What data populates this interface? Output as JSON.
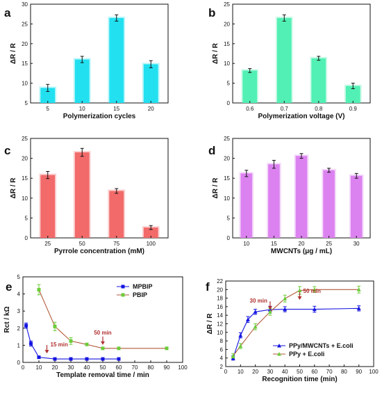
{
  "chart_data": [
    {
      "panel": "a",
      "type": "bar",
      "categories": [
        "5",
        "10",
        "15",
        "20"
      ],
      "values": [
        8.8,
        16.0,
        26.5,
        14.8
      ],
      "errors": [
        0.9,
        0.8,
        0.8,
        0.9
      ],
      "xlabel": "Polymerization cycles",
      "ylabel": "ΔR / R",
      "ylim": [
        5,
        30
      ],
      "yticks": [
        5,
        10,
        15,
        20,
        25,
        30
      ],
      "color": "#22e0f0"
    },
    {
      "panel": "b",
      "type": "bar",
      "categories": [
        "0.6",
        "0.7",
        "0.8",
        "0.9"
      ],
      "values": [
        8.2,
        21.5,
        11.3,
        4.3
      ],
      "errors": [
        0.5,
        0.8,
        0.5,
        0.7
      ],
      "xlabel": "Polymerization voltage (V)",
      "ylabel": "ΔR / R",
      "ylim": [
        0,
        25
      ],
      "yticks": [
        0,
        5,
        10,
        15,
        20,
        25
      ],
      "color": "#52f0b4"
    },
    {
      "panel": "c",
      "type": "bar",
      "categories": [
        "25",
        "50",
        "75",
        "100"
      ],
      "values": [
        15.8,
        21.5,
        11.8,
        2.6
      ],
      "errors": [
        0.9,
        1.0,
        0.6,
        0.5
      ],
      "xlabel": "Pyrrole concentration (mM)",
      "ylabel": "ΔR / R",
      "ylim": [
        0,
        25
      ],
      "yticks": [
        0,
        5,
        10,
        15,
        20,
        25
      ],
      "color": "#f26a6a"
    },
    {
      "panel": "d",
      "type": "bar",
      "categories": [
        "10",
        "15",
        "20",
        "25",
        "30"
      ],
      "values": [
        16.2,
        18.5,
        20.6,
        17.0,
        15.6
      ],
      "errors": [
        0.8,
        1.0,
        0.6,
        0.5,
        0.6
      ],
      "xlabel": "MWCNTs (μg / mL)",
      "ylabel": "ΔR / R",
      "ylim": [
        0,
        25
      ],
      "yticks": [
        0,
        5,
        10,
        15,
        20,
        25
      ],
      "color": "#dc82f0"
    },
    {
      "panel": "e",
      "type": "line",
      "xlabel": "Template removal time / min",
      "ylabel": "Rct / kΩ",
      "xlim": [
        0,
        100
      ],
      "xticks": [
        0,
        10,
        20,
        30,
        40,
        50,
        60,
        70,
        80,
        90,
        100
      ],
      "ylim": [
        0,
        5
      ],
      "yticks": [
        0,
        1,
        2,
        3,
        4,
        5
      ],
      "series": [
        {
          "name": "MPBIP",
          "color": "#1414e0",
          "marker": "square",
          "x": [
            2,
            5,
            10,
            20,
            30,
            40,
            50,
            60
          ],
          "y": [
            2.15,
            1.1,
            0.3,
            0.2,
            0.2,
            0.2,
            0.2,
            0.2
          ],
          "err": [
            0.15,
            0.15,
            0.05,
            0.03,
            0.03,
            0.03,
            0.03,
            0.03
          ]
        },
        {
          "name": "PBIP",
          "color": "#6ccc3a",
          "line_color": "#b05a3a",
          "marker": "square",
          "x": [
            10,
            20,
            30,
            40,
            50,
            60,
            90
          ],
          "y": [
            4.25,
            2.1,
            1.25,
            1.05,
            0.82,
            0.82,
            0.82
          ],
          "err": [
            0.3,
            0.25,
            0.2,
            0.05,
            0.04,
            0.04,
            0.04
          ]
        }
      ],
      "annotations": [
        {
          "text": "15 min",
          "x": 15,
          "y": 0.85,
          "color": "#b03030"
        },
        {
          "text": "50 min",
          "x": 50,
          "y": 1.35,
          "color": "#b03030"
        }
      ]
    },
    {
      "panel": "f",
      "type": "line",
      "xlabel": "Recognition time (min)",
      "ylabel": "ΔR / R",
      "xlim": [
        0,
        100
      ],
      "xticks": [
        0,
        10,
        20,
        30,
        40,
        50,
        60,
        70,
        80,
        90,
        100
      ],
      "ylim": [
        2,
        22
      ],
      "yticks": [
        2,
        4,
        6,
        8,
        10,
        12,
        14,
        16,
        18,
        20,
        22
      ],
      "series": [
        {
          "name": "PPy/MWCNTs + E.coli",
          "color": "#1414e0",
          "marker": "triangle",
          "x": [
            5,
            10,
            15,
            20,
            30,
            40,
            60,
            90
          ],
          "y": [
            4.0,
            9.3,
            13.0,
            14.8,
            15.3,
            15.4,
            15.4,
            15.6
          ],
          "err": [
            0.5,
            0.6,
            0.7,
            0.6,
            0.8,
            0.6,
            0.7,
            0.6
          ]
        },
        {
          "name": "PPy + E.coli",
          "color": "#6ccc3a",
          "line_color": "#b05a3a",
          "marker": "triangle",
          "x": [
            5,
            10,
            20,
            30,
            40,
            50,
            60,
            90
          ],
          "y": [
            4.5,
            6.8,
            11.3,
            14.8,
            17.9,
            19.8,
            20.0,
            20.0
          ],
          "err": [
            0.5,
            0.6,
            0.7,
            0.8,
            0.8,
            0.9,
            0.7,
            0.8
          ]
        }
      ],
      "annotations": [
        {
          "text": "30 min",
          "x": 30,
          "y": 16.6,
          "color": "#b03030"
        },
        {
          "text": "50 min",
          "x": 50,
          "y": 18.9,
          "color": "#b03030"
        }
      ]
    }
  ]
}
